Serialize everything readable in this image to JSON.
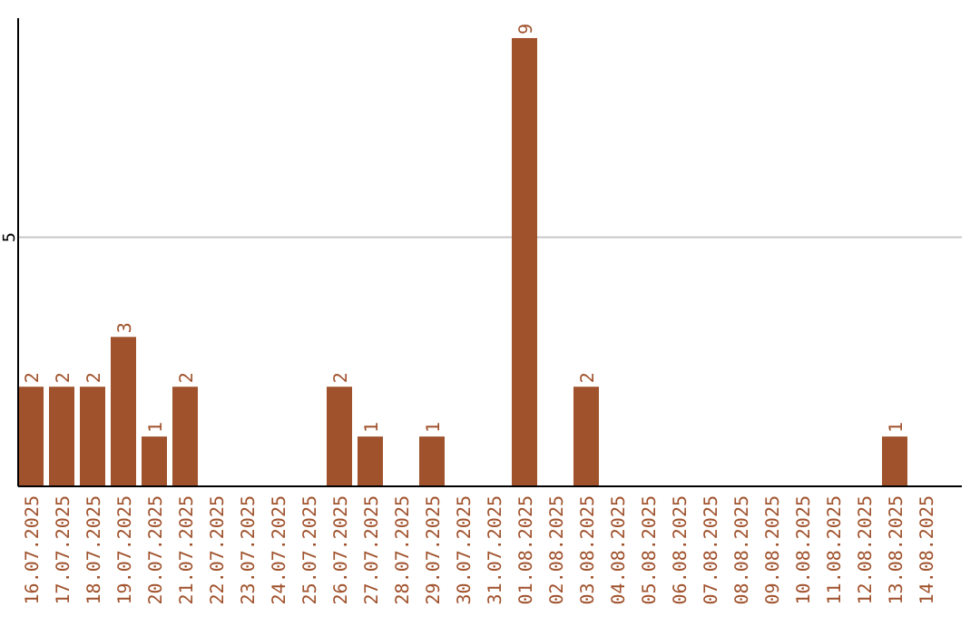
{
  "chart_data": {
    "type": "bar",
    "categories": [
      "16.07.2025",
      "17.07.2025",
      "18.07.2025",
      "19.07.2025",
      "20.07.2025",
      "21.07.2025",
      "22.07.2025",
      "23.07.2025",
      "24.07.2025",
      "25.07.2025",
      "26.07.2025",
      "27.07.2025",
      "28.07.2025",
      "29.07.2025",
      "30.07.2025",
      "31.07.2025",
      "01.08.2025",
      "02.08.2025",
      "03.08.2025",
      "04.08.2025",
      "05.08.2025",
      "06.08.2025",
      "07.08.2025",
      "08.08.2025",
      "09.08.2025",
      "10.08.2025",
      "11.08.2025",
      "12.08.2025",
      "13.08.2025",
      "14.08.2025"
    ],
    "values": [
      2,
      2,
      2,
      3,
      1,
      2,
      0,
      0,
      0,
      0,
      2,
      1,
      0,
      1,
      0,
      0,
      9,
      0,
      2,
      0,
      0,
      0,
      0,
      0,
      0,
      0,
      0,
      0,
      1,
      0
    ],
    "value_labels": [
      "2",
      "2",
      "2",
      "3",
      "1",
      "2",
      null,
      null,
      null,
      null,
      "2",
      "1",
      null,
      "1",
      null,
      null,
      "9",
      null,
      "2",
      null,
      null,
      null,
      null,
      null,
      null,
      null,
      null,
      null,
      "1",
      null
    ],
    "color": "#a0522d",
    "ylim": [
      0,
      9.4
    ],
    "yticks": [
      5
    ],
    "grid": "y"
  }
}
